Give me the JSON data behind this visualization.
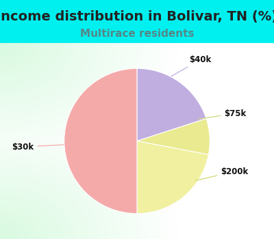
{
  "title": "Income distribution in Bolivar, TN (%)",
  "subtitle": "Multirace residents",
  "labels": [
    "$40k",
    "$75k",
    "$200k",
    "$30k"
  ],
  "sizes": [
    20,
    8,
    22,
    50
  ],
  "slice_colors": [
    "#c0aee0",
    "#eaea90",
    "#f0f0a0",
    "#f5aaaa"
  ],
  "outer_bg": "#00f0f0",
  "title_fontsize": 14,
  "subtitle_fontsize": 11,
  "title_color": "#222222",
  "subtitle_color": "#558888",
  "startangle": 90,
  "gradient_colors": [
    "#c8e8d8",
    "#ffffff"
  ],
  "label_color": "#111111",
  "line_colors": [
    "#c0aee0",
    "#d0d880",
    "#d0d870",
    "#f5aaaa"
  ]
}
